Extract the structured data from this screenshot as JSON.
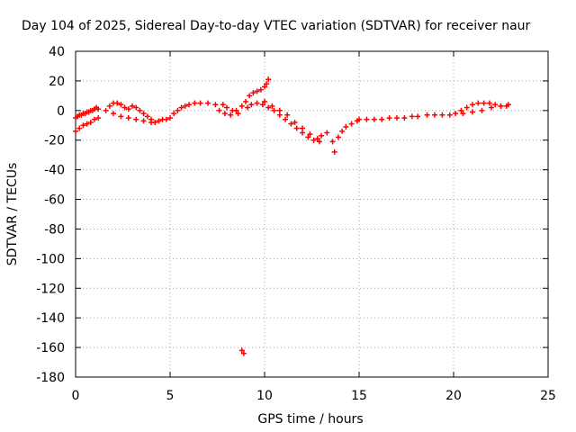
{
  "chart_data": {
    "type": "scatter",
    "title": "Day 104 of 2025, Sidereal Day-to-day VTEC variation (SDTVAR) for receiver naur",
    "xlabel": "GPS time / hours",
    "ylabel": "SDTVAR / TECUs",
    "xlim": [
      0,
      25
    ],
    "ylim": [
      -180,
      40
    ],
    "xticks": [
      0,
      5,
      10,
      15,
      20,
      25
    ],
    "yticks": [
      40,
      20,
      0,
      -20,
      -40,
      -60,
      -80,
      -100,
      -120,
      -140,
      -160,
      -180
    ],
    "grid": true,
    "marker": "+",
    "color": "#ff0000",
    "series": [
      {
        "name": "SDTVAR",
        "x": [
          0.0,
          0.1,
          0.2,
          0.3,
          0.4,
          0.5,
          0.6,
          0.7,
          0.8,
          0.9,
          1.0,
          1.1,
          1.2,
          0.0,
          0.2,
          0.4,
          0.6,
          0.8,
          1.0,
          1.2,
          1.6,
          1.8,
          2.0,
          2.2,
          2.4,
          2.6,
          2.8,
          3.0,
          3.2,
          3.4,
          3.6,
          3.8,
          4.0,
          2.0,
          2.4,
          2.8,
          3.2,
          3.6,
          4.0,
          4.2,
          4.4,
          4.6,
          4.8,
          5.0,
          5.2,
          5.4,
          5.6,
          5.8,
          6.0,
          6.3,
          6.6,
          7.0,
          7.4,
          7.8,
          8.0,
          8.3,
          8.6,
          7.6,
          7.9,
          8.2,
          8.5,
          8.8,
          9.0,
          9.2,
          9.4,
          9.6,
          9.8,
          10.0,
          10.1,
          10.2,
          9.1,
          9.3,
          9.6,
          9.9,
          10.2,
          10.5,
          10.8,
          11.1,
          11.4,
          11.7,
          12.0,
          12.3,
          12.6,
          12.9,
          10.0,
          10.4,
          10.8,
          11.2,
          11.6,
          12.0,
          12.4,
          12.8,
          13.0,
          13.3,
          13.6,
          13.7,
          13.9,
          14.1,
          14.3,
          14.6,
          14.9,
          15.0,
          15.4,
          15.8,
          16.2,
          16.6,
          17.0,
          17.4,
          17.8,
          18.1,
          18.6,
          19.0,
          19.4,
          19.8,
          20.1,
          20.4,
          20.7,
          21.0,
          21.3,
          21.6,
          21.9,
          22.2,
          22.5,
          22.8,
          20.5,
          21.0,
          21.5,
          22.0,
          22.5,
          22.9,
          8.8,
          8.9
        ],
        "y": [
          -5,
          -4,
          -3,
          -3,
          -2,
          -2,
          -1,
          -1,
          0,
          0,
          1,
          2,
          1,
          -14,
          -12,
          -10,
          -9,
          -8,
          -6,
          -5,
          0,
          3,
          5,
          5,
          4,
          2,
          1,
          3,
          2,
          0,
          -2,
          -4,
          -6,
          -2,
          -4,
          -5,
          -6,
          -7,
          -8,
          -8,
          -7,
          -6,
          -6,
          -5,
          -2,
          0,
          2,
          3,
          4,
          5,
          5,
          5,
          4,
          4,
          2,
          0,
          -2,
          0,
          -2,
          -3,
          0,
          3,
          6,
          10,
          12,
          13,
          14,
          16,
          18,
          21,
          2,
          4,
          5,
          4,
          2,
          0,
          -3,
          -6,
          -9,
          -12,
          -15,
          -18,
          -20,
          -21,
          6,
          3,
          0,
          -3,
          -8,
          -12,
          -16,
          -19,
          -17,
          -15,
          -21,
          -28,
          -18,
          -14,
          -11,
          -9,
          -7,
          -6,
          -6,
          -6,
          -6,
          -5,
          -5,
          -5,
          -4,
          -4,
          -3,
          -3,
          -3,
          -3,
          -2,
          0,
          2,
          4,
          5,
          5,
          5,
          4,
          3,
          3,
          -2,
          -1,
          0,
          2,
          3,
          4,
          -162,
          -164
        ]
      }
    ]
  }
}
